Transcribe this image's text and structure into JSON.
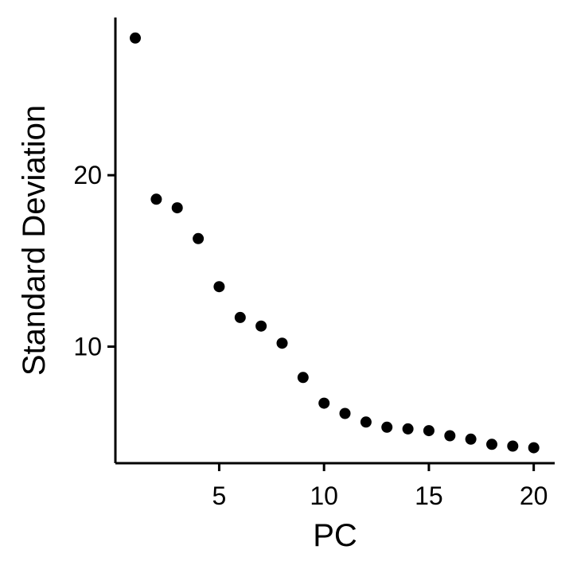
{
  "chart_data": {
    "type": "scatter",
    "title": "",
    "xlabel": "PC",
    "ylabel": "Standard Deviation",
    "xlim": [
      0.05,
      21.0
    ],
    "ylim": [
      3.2,
      29.2
    ],
    "xticks": [
      5,
      10,
      15,
      20
    ],
    "yticks": [
      10,
      20
    ],
    "grid": false,
    "legend": "none",
    "point_color": "#000000",
    "series": [
      {
        "name": "Standard Deviation",
        "x": [
          1,
          2,
          3,
          4,
          5,
          6,
          7,
          8,
          9,
          10,
          11,
          12,
          13,
          14,
          15,
          16,
          17,
          18,
          19,
          20
        ],
        "y": [
          28.0,
          18.6,
          18.1,
          16.3,
          13.5,
          11.7,
          11.2,
          10.2,
          8.2,
          6.7,
          6.1,
          5.6,
          5.3,
          5.2,
          5.1,
          4.8,
          4.6,
          4.3,
          4.2,
          4.1
        ]
      }
    ]
  }
}
